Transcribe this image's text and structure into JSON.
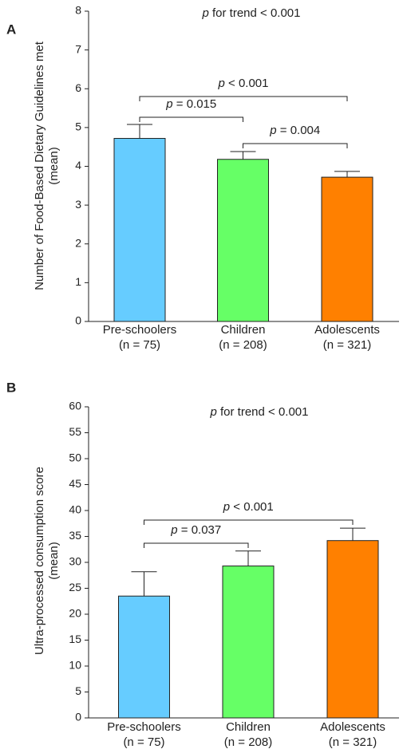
{
  "chart_data": [
    {
      "type": "bar",
      "panel": "A",
      "y_label": [
        "Number of Food-Based Dietary Guidelines met",
        "(mean)"
      ],
      "categories": [
        "Pre-schoolers",
        "Children",
        "Adolescents"
      ],
      "category_sublabels": [
        "(n = 75)",
        "(n = 208)",
        "(n = 321)"
      ],
      "values": [
        4.72,
        4.18,
        3.72
      ],
      "errors": [
        0.36,
        0.2,
        0.15
      ],
      "colors": [
        "#66ccff",
        "#66ff66",
        "#ff8000"
      ],
      "ylim": [
        0,
        8
      ],
      "yticks": [
        0,
        1,
        2,
        3,
        4,
        5,
        6,
        7,
        8
      ],
      "annotation": {
        "italic": "p",
        "text": " for trend < 0.001"
      },
      "comparisons": [
        {
          "from": 0,
          "to": 2,
          "italic": "p",
          "text": " < 0.001"
        },
        {
          "from": 0,
          "to": 1,
          "italic": "p",
          "text": " = 0.015"
        },
        {
          "from": 1,
          "to": 2,
          "italic": "p",
          "text": " = 0.004"
        }
      ]
    },
    {
      "type": "bar",
      "panel": "B",
      "y_label": [
        "Ultra-processed consumption score",
        "(mean)"
      ],
      "categories": [
        "Pre-schoolers",
        "Children",
        "Adolescents"
      ],
      "category_sublabels": [
        "(n = 75)",
        "(n = 208)",
        "(n = 321)"
      ],
      "values": [
        23.5,
        29.3,
        34.2
      ],
      "errors": [
        4.7,
        2.9,
        2.4
      ],
      "colors": [
        "#66ccff",
        "#66ff66",
        "#ff8000"
      ],
      "ylim": [
        0,
        60
      ],
      "yticks": [
        0,
        5,
        10,
        15,
        20,
        25,
        30,
        35,
        40,
        45,
        50,
        55,
        60
      ],
      "annotation": {
        "italic": "p",
        "text": " for trend < 0.001"
      },
      "comparisons": [
        {
          "from": 0,
          "to": 2,
          "italic": "p",
          "text": " < 0.001"
        },
        {
          "from": 0,
          "to": 1,
          "italic": "p",
          "text": " = 0.037"
        }
      ]
    }
  ]
}
